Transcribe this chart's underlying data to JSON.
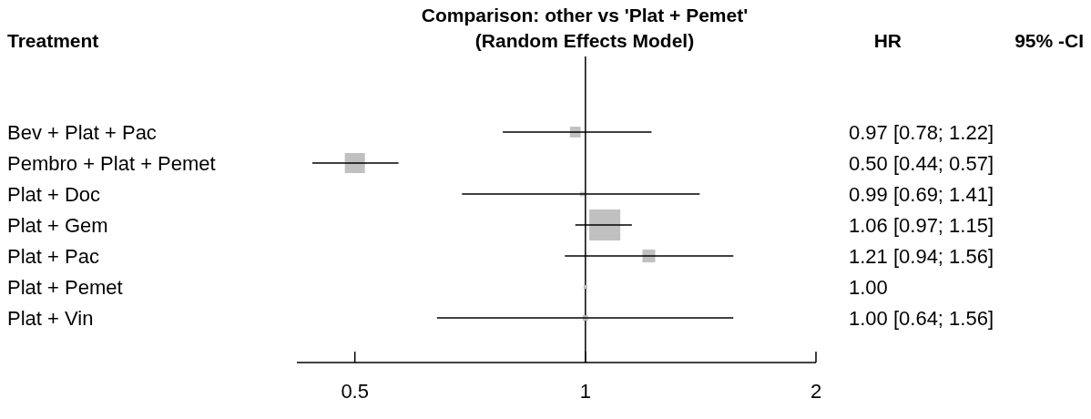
{
  "chart_data": {
    "type": "bubble",
    "title": "Comparison: other vs 'Plat + Pemet'",
    "subtitle": "(Random Effects Model)",
    "ylabel": "Treatment",
    "annotations": [
      "HR",
      "95% -CI",
      "0.97 [0.78; 1.22]",
      "0.50 [0.44; 0.57]",
      "0.99 [0.69; 1.41]",
      "1.06 [0.97; 1.15]",
      "1.21 [0.94; 1.56]",
      "1.00",
      "1.00 [0.64; 1.56]"
    ],
    "orientation": "horizontal",
    "categories": [
      "Bev + Plat + Pac",
      "Pembro + Plat + Pemet",
      "Plat + Doc",
      "Plat + Gem",
      "Plat + Pac",
      "Plat + Pemet",
      "Plat + Vin"
    ],
    "values": [
      0.97,
      0.5,
      0.99,
      1.06,
      1.21,
      1.0,
      1.0
    ],
    "errors": [
      [
        0.78,
        1.22
      ],
      [
        0.44,
        0.57
      ],
      [
        0.69,
        1.41
      ],
      [
        0.97,
        1.15
      ],
      [
        0.94,
        1.56
      ],
      null,
      [
        0.64,
        1.56
      ]
    ],
    "sizes": [
      0.12,
      0.42,
      0.02,
      1,
      0.17,
      null,
      0.03
    ],
    "color": "#c0c0c0",
    "marker": "square",
    "log": "x",
    "xlim": [
      0.42,
      2
    ],
    "xticks": [
      {
        "value": 0.5,
        "label": "0.5"
      },
      1,
      2
    ],
    "ref_lines": [
      {
        "axis": "x",
        "value": 1
      }
    ]
  }
}
